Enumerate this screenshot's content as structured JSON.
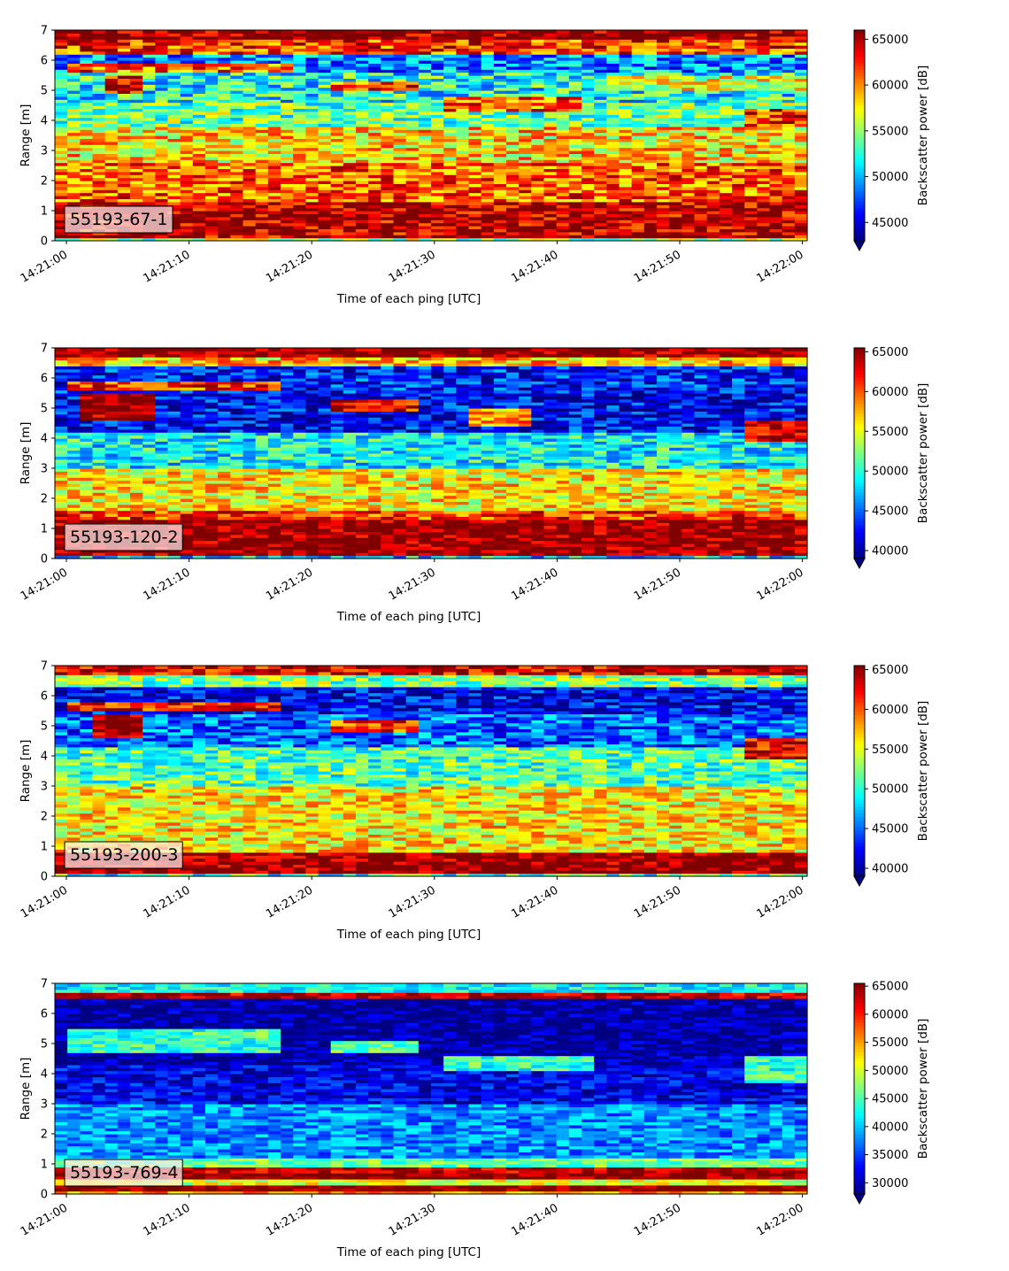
{
  "chart_data": [
    {
      "type": "heatmap",
      "label": "55193-67-1",
      "xlabel": "Time of each ping [UTC]",
      "ylabel": "Range [m]",
      "xticks": [
        "14:21:00",
        "14:21:10",
        "14:21:20",
        "14:21:30",
        "14:21:40",
        "14:21:50",
        "14:22:00"
      ],
      "yticks": [
        0,
        1,
        2,
        3,
        4,
        5,
        6,
        7
      ],
      "ylim": [
        0,
        7
      ],
      "colorbar": {
        "label": "Backscatter power [dB]",
        "ticks": [
          45000,
          50000,
          55000,
          60000,
          65000
        ],
        "vmin": 43000,
        "vmax": 66000,
        "colormap": "jet"
      },
      "bands": [
        {
          "range": [
            6.75,
            7.0
          ],
          "value": 66000
        },
        {
          "range": [
            6.2,
            6.75
          ],
          "value": 62000
        },
        {
          "range": [
            5.6,
            6.2
          ],
          "value": 49000
        },
        {
          "range": [
            4.6,
            5.6
          ],
          "value": 52000
        },
        {
          "range": [
            3.8,
            4.6
          ],
          "value": 54000
        },
        {
          "range": [
            2.6,
            3.8
          ],
          "value": 58000
        },
        {
          "range": [
            1.3,
            2.6
          ],
          "value": 61000
        },
        {
          "range": [
            0.1,
            1.3
          ],
          "value": 65000
        },
        {
          "range": [
            0.0,
            0.1
          ],
          "value": 55000
        }
      ],
      "layers": [
        {
          "start_s": 0,
          "end_s": 18,
          "range_start": 5.6,
          "range_end": 5.9,
          "value": 61000
        },
        {
          "start_s": 3,
          "end_s": 6,
          "range_start": 4.9,
          "range_end": 5.5,
          "value": 64000
        },
        {
          "start_s": 22,
          "end_s": 29,
          "range_start": 5.0,
          "range_end": 5.3,
          "value": 62000
        },
        {
          "start_s": 31,
          "end_s": 42,
          "range_start": 4.3,
          "range_end": 4.8,
          "value": 61000
        },
        {
          "start_s": 44,
          "end_s": 60,
          "range_start": 5.0,
          "range_end": 5.5,
          "value": 57000
        },
        {
          "start_s": 55,
          "end_s": 60,
          "range_start": 3.8,
          "range_end": 4.4,
          "value": 62000
        }
      ]
    },
    {
      "type": "heatmap",
      "label": "55193-120-2",
      "xlabel": "Time of each ping [UTC]",
      "ylabel": "Range [m]",
      "xticks": [
        "14:21:00",
        "14:21:10",
        "14:21:20",
        "14:21:30",
        "14:21:40",
        "14:21:50",
        "14:22:00"
      ],
      "yticks": [
        0,
        1,
        2,
        3,
        4,
        5,
        6,
        7
      ],
      "ylim": [
        0,
        7
      ],
      "colorbar": {
        "label": "Backscatter power [dB]",
        "ticks": [
          40000,
          45000,
          50000,
          55000,
          60000,
          65000
        ],
        "vmin": 39000,
        "vmax": 65500,
        "colormap": "jet"
      },
      "bands": [
        {
          "range": [
            6.7,
            7.0
          ],
          "value": 65500
        },
        {
          "range": [
            6.4,
            6.7
          ],
          "value": 57000
        },
        {
          "range": [
            5.5,
            6.4
          ],
          "value": 43000
        },
        {
          "range": [
            4.2,
            5.5
          ],
          "value": 42000
        },
        {
          "range": [
            3.0,
            4.2
          ],
          "value": 49000
        },
        {
          "range": [
            1.6,
            3.0
          ],
          "value": 56000
        },
        {
          "range": [
            1.3,
            1.6
          ],
          "value": 61000
        },
        {
          "range": [
            0.05,
            1.3
          ],
          "value": 65500
        },
        {
          "range": [
            0.0,
            0.05
          ],
          "value": 48000
        }
      ],
      "layers": [
        {
          "start_s": 0,
          "end_s": 17,
          "range_start": 5.6,
          "range_end": 5.9,
          "value": 61000
        },
        {
          "start_s": 1,
          "end_s": 7,
          "range_start": 4.6,
          "range_end": 5.5,
          "value": 65500
        },
        {
          "start_s": 22,
          "end_s": 29,
          "range_start": 4.9,
          "range_end": 5.3,
          "value": 63000
        },
        {
          "start_s": 33,
          "end_s": 38,
          "range_start": 4.4,
          "range_end": 5.0,
          "value": 58000
        },
        {
          "start_s": 55,
          "end_s": 60,
          "range_start": 3.9,
          "range_end": 4.6,
          "value": 64000
        }
      ]
    },
    {
      "type": "heatmap",
      "label": "55193-200-3",
      "xlabel": "Time of each ping [UTC]",
      "ylabel": "Range [m]",
      "xticks": [
        "14:21:00",
        "14:21:10",
        "14:21:20",
        "14:21:30",
        "14:21:40",
        "14:21:50",
        "14:22:00"
      ],
      "yticks": [
        0,
        1,
        2,
        3,
        4,
        5,
        6,
        7
      ],
      "ylim": [
        0,
        7
      ],
      "colorbar": {
        "label": "Backscatter power [dB]",
        "ticks": [
          40000,
          45000,
          50000,
          55000,
          60000,
          65000
        ],
        "vmin": 39000,
        "vmax": 65500,
        "colormap": "jet"
      },
      "bands": [
        {
          "range": [
            6.65,
            7.0
          ],
          "value": 63000
        },
        {
          "range": [
            6.3,
            6.65
          ],
          "value": 52000
        },
        {
          "range": [
            5.4,
            6.3
          ],
          "value": 42000
        },
        {
          "range": [
            4.3,
            5.4
          ],
          "value": 45000
        },
        {
          "range": [
            3.0,
            4.3
          ],
          "value": 51000
        },
        {
          "range": [
            0.8,
            3.0
          ],
          "value": 56000
        },
        {
          "range": [
            0.1,
            0.8
          ],
          "value": 65500
        },
        {
          "range": [
            0.0,
            0.1
          ],
          "value": 50000
        }
      ],
      "layers": [
        {
          "start_s": 0,
          "end_s": 17,
          "range_start": 5.5,
          "range_end": 5.8,
          "value": 62000
        },
        {
          "start_s": 2,
          "end_s": 6,
          "range_start": 4.6,
          "range_end": 5.4,
          "value": 65500
        },
        {
          "start_s": 22,
          "end_s": 29,
          "range_start": 4.8,
          "range_end": 5.2,
          "value": 61000
        },
        {
          "start_s": 55,
          "end_s": 60,
          "range_start": 3.9,
          "range_end": 4.6,
          "value": 63000
        }
      ]
    },
    {
      "type": "heatmap",
      "label": "55193-769-4",
      "xlabel": "Time of each ping [UTC]",
      "ylabel": "Range [m]",
      "xticks": [
        "14:21:00",
        "14:21:10",
        "14:21:20",
        "14:21:30",
        "14:21:40",
        "14:21:50",
        "14:22:00"
      ],
      "yticks": [
        0,
        1,
        2,
        3,
        4,
        5,
        6,
        7
      ],
      "ylim": [
        0,
        7
      ],
      "colorbar": {
        "label": "Backscatter power [dB]",
        "ticks": [
          30000,
          35000,
          40000,
          45000,
          50000,
          55000,
          60000,
          65000
        ],
        "vmin": 28000,
        "vmax": 65500,
        "colormap": "jet"
      },
      "bands": [
        {
          "range": [
            6.7,
            7.0
          ],
          "value": 42000
        },
        {
          "range": [
            6.5,
            6.7
          ],
          "value": 63000
        },
        {
          "range": [
            4.3,
            6.5
          ],
          "value": 29000
        },
        {
          "range": [
            3.0,
            4.3
          ],
          "value": 32000
        },
        {
          "range": [
            1.2,
            3.0
          ],
          "value": 38000
        },
        {
          "range": [
            0.9,
            1.2
          ],
          "value": 46000
        },
        {
          "range": [
            0.7,
            0.9
          ],
          "value": 63000
        },
        {
          "range": [
            0.45,
            0.7
          ],
          "value": 65500
        },
        {
          "range": [
            0.3,
            0.45
          ],
          "value": 50000
        },
        {
          "range": [
            0.1,
            0.3
          ],
          "value": 65500
        },
        {
          "range": [
            0.0,
            0.1
          ],
          "value": 55000
        }
      ],
      "layers": [
        {
          "start_s": 0,
          "end_s": 17,
          "range_start": 4.7,
          "range_end": 5.5,
          "value": 44000
        },
        {
          "start_s": 22,
          "end_s": 29,
          "range_start": 4.7,
          "range_end": 5.1,
          "value": 46000
        },
        {
          "start_s": 31,
          "end_s": 43,
          "range_start": 4.1,
          "range_end": 4.6,
          "value": 44000
        },
        {
          "start_s": 55,
          "end_s": 60,
          "range_start": 3.7,
          "range_end": 4.6,
          "value": 44000
        }
      ]
    }
  ]
}
